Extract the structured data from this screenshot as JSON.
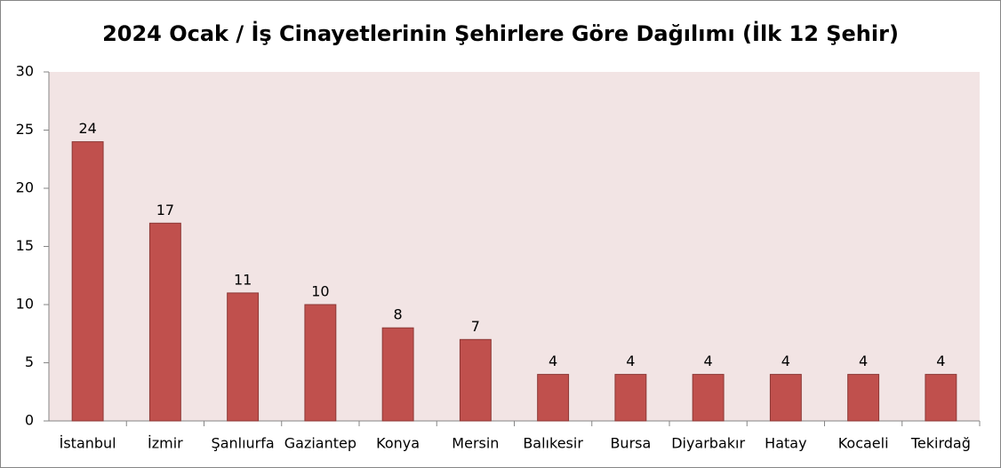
{
  "chart_data": {
    "type": "bar",
    "title": "2024 Ocak / İş Cinayetlerinin Şehirlere Göre Dağılımı (İlk 12 Şehir)",
    "categories": [
      "İstanbul",
      "İzmir",
      "Şanlıurfa",
      "Gaziantep",
      "Konya",
      "Mersin",
      "Balıkesir",
      "Bursa",
      "Diyarbakır",
      "Hatay",
      "Kocaeli",
      "Tekirdağ"
    ],
    "values": [
      24,
      17,
      11,
      10,
      8,
      7,
      4,
      4,
      4,
      4,
      4,
      4
    ],
    "color": "#c0504d",
    "plot_background": "#f2e4e4",
    "ylim": [
      0,
      30
    ],
    "yticks": [
      0,
      5,
      10,
      15,
      20,
      25,
      30
    ]
  }
}
